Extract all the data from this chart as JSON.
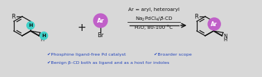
{
  "background_color": "#d8d8d8",
  "title_text": "Ar = aryl, heteroaryl",
  "reaction_text1": "Na",
  "reaction_text2": "PdCl",
  "reaction_text3": "/β-CD",
  "conditions_text": "H₂O, 80-100 °C",
  "bullet1": "✔Phosphine ligand-free Pd catalyst",
  "bullet2": "✔Broarder scope",
  "bullet3": "✔Benign β–CD both as ligand and as a host for indoles",
  "cyan_color": "#40d0c8",
  "purple_color": "#c060c8",
  "blue_check": "#2244bb",
  "black": "#111111",
  "white": "#ffffff"
}
